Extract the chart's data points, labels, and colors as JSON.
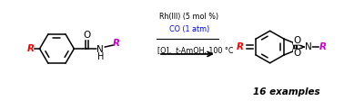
{
  "bg_color": "#ffffff",
  "r_color_red": "#ff0000",
  "r_color_magenta": "#cc00cc",
  "co_color": "#0000ee",
  "black": "#000000",
  "condition_line1": "Rh(III) (5 mol %)",
  "condition_line2": "CO (1 atm)",
  "condition_line3_a": "[O], ",
  "condition_line3_b": "t",
  "condition_line3_c": "-AmOH, 100 °C",
  "examples_text": "16 examples",
  "figsize": [
    3.78,
    1.12
  ],
  "dpi": 100
}
